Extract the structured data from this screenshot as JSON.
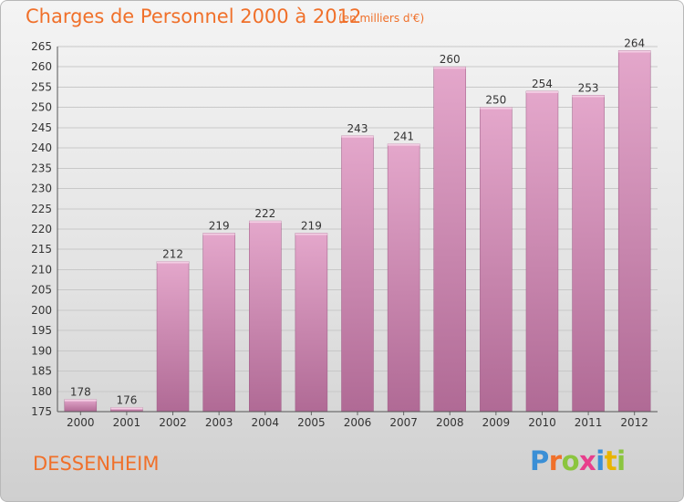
{
  "header": {
    "title": "Charges de Personnel 2000 à 2012",
    "subtitle": "(en milliers d'€)"
  },
  "footer": {
    "city": "DESSENHEIM",
    "logo_text": "Proxiti"
  },
  "colors": {
    "title": "#f0702a",
    "bar_top": "#e4a7cb",
    "bar_bottom": "#b06a95",
    "logo": [
      "#3a8fd6",
      "#f0702a",
      "#8bc53f",
      "#e83e8c",
      "#3a8fd6",
      "#e8b400",
      "#8bc53f"
    ]
  },
  "chart_data": {
    "type": "bar",
    "categories": [
      "2000",
      "2001",
      "2002",
      "2003",
      "2004",
      "2005",
      "2006",
      "2007",
      "2008",
      "2009",
      "2010",
      "2011",
      "2012"
    ],
    "values": [
      178,
      176,
      212,
      219,
      222,
      219,
      243,
      241,
      260,
      250,
      254,
      253,
      264
    ],
    "title": "Charges de Personnel 2000 à 2012",
    "subtitle": "(en milliers d'€)",
    "ylim": [
      175,
      265
    ],
    "yticks": [
      175,
      180,
      185,
      190,
      195,
      200,
      205,
      210,
      215,
      220,
      225,
      230,
      235,
      240,
      245,
      250,
      255,
      260,
      265
    ],
    "grid": true,
    "legend": "none"
  }
}
